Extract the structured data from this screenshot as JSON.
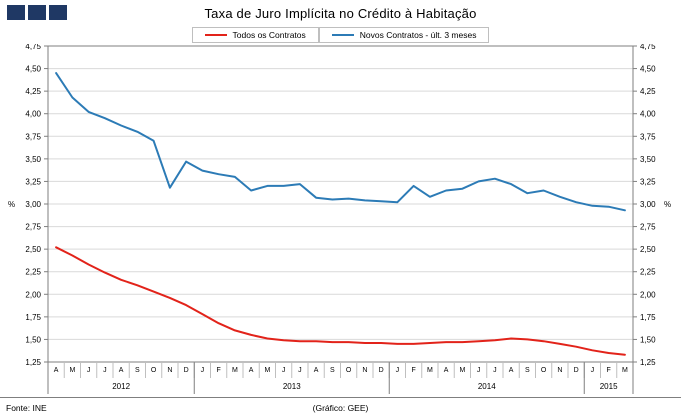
{
  "title": "Taxa de Juro Implícita no Crédito à Habitação",
  "logo": {
    "color": "#1f3864",
    "squares": 3
  },
  "footer": {
    "source": "Fonte: INE",
    "credit": "(Gráfico: GEE)"
  },
  "chart_data": {
    "type": "line",
    "title": "Taxa de Juro Implícita no Crédito à Habitação",
    "xlabel": "",
    "ylabel": "%",
    "ylim": [
      1.25,
      4.75
    ],
    "ytick_step": 0.25,
    "ytick_format": "comma-decimal",
    "grid": true,
    "legend_position": "top",
    "axis_color": "#7f7f7f",
    "grid_color": "#d9d9d9",
    "categories": [
      "A",
      "M",
      "J",
      "J",
      "A",
      "S",
      "O",
      "N",
      "D",
      "J",
      "F",
      "M",
      "A",
      "M",
      "J",
      "J",
      "A",
      "S",
      "O",
      "N",
      "D",
      "J",
      "F",
      "M",
      "A",
      "M",
      "J",
      "J",
      "A",
      "S",
      "O",
      "N",
      "D",
      "J",
      "F",
      "M"
    ],
    "year_groups": [
      {
        "label": "2012",
        "count": 9
      },
      {
        "label": "2013",
        "count": 12
      },
      {
        "label": "2014",
        "count": 12
      },
      {
        "label": "2015",
        "count": 3
      }
    ],
    "series": [
      {
        "name": "Todos os Contratos",
        "color": "#e2231a",
        "values": [
          2.52,
          2.43,
          2.33,
          2.24,
          2.16,
          2.1,
          2.03,
          1.96,
          1.88,
          1.78,
          1.68,
          1.6,
          1.55,
          1.51,
          1.49,
          1.48,
          1.48,
          1.47,
          1.47,
          1.46,
          1.46,
          1.45,
          1.45,
          1.46,
          1.47,
          1.47,
          1.48,
          1.49,
          1.51,
          1.5,
          1.48,
          1.45,
          1.42,
          1.38,
          1.35,
          1.33
        ]
      },
      {
        "name": "Novos Contratos - últ. 3 meses",
        "color": "#2c7bb6",
        "values": [
          4.45,
          4.18,
          4.02,
          3.95,
          3.87,
          3.8,
          3.7,
          3.18,
          3.47,
          3.37,
          3.33,
          3.3,
          3.15,
          3.2,
          3.2,
          3.22,
          3.07,
          3.05,
          3.06,
          3.04,
          3.03,
          3.02,
          3.2,
          3.08,
          3.15,
          3.17,
          3.25,
          3.28,
          3.22,
          3.12,
          3.15,
          3.08,
          3.02,
          2.98,
          2.97,
          2.93
        ]
      }
    ]
  }
}
